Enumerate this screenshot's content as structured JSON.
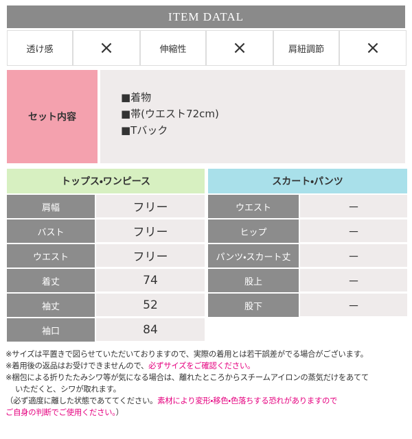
{
  "header": {
    "title": "ITEM DATAL"
  },
  "attributes": [
    {
      "label": "透け感",
      "value": "×"
    },
    {
      "label": "伸縮性",
      "value": "×"
    },
    {
      "label": "肩紐調節",
      "value": "×"
    }
  ],
  "set": {
    "label": "セット内容",
    "items": [
      "■着物",
      "■帯(ウエスト72cm)",
      "■Tバック"
    ]
  },
  "tops": {
    "title": "トップス・ワンピース",
    "rows": [
      [
        "肩幅",
        "フリー"
      ],
      [
        "バスト",
        "フリー"
      ],
      [
        "ウエスト",
        "フリー"
      ],
      [
        "着丈",
        "74"
      ],
      [
        "袖丈",
        "52"
      ],
      [
        "袖口",
        "84"
      ]
    ]
  },
  "bottoms": {
    "title": "スカート・パンツ",
    "rows": [
      [
        "ウエスト",
        "－"
      ],
      [
        "ヒップ",
        "－"
      ],
      [
        "パンツ・スカート丈",
        "－"
      ],
      [
        "股上",
        "－"
      ],
      [
        "股下",
        "－"
      ]
    ]
  },
  "notes": [
    [
      {
        "text": "※サイズは平置きで図らせていただいておりますので、実際の着用とは若干誤差がでる場合がございます。"
      }
    ],
    [
      {
        "text": "※着用後の返品はお受けできませんので、"
      },
      {
        "text": "必ずサイズをご確認ください。",
        "color": "#e5007f"
      }
    ],
    [
      {
        "text": "※梱包による折りたたみシワ等が気になる場合は、離れたところからスチームアイロンの蒸気だけをあてて"
      }
    ],
    [
      {
        "text": "いただくと、シワが取れます。"
      }
    ],
    [
      {
        "text": "（必ず適度に離した状態であててください。"
      },
      {
        "text": "素材により変形・移色・色落ちする恐れがありますので",
        "color": "#e5007f"
      }
    ],
    [
      {
        "text": "ご自身の判断でご使用ください。",
        "color": "#e5007f"
      },
      {
        "text": "）"
      }
    ]
  ]
}
